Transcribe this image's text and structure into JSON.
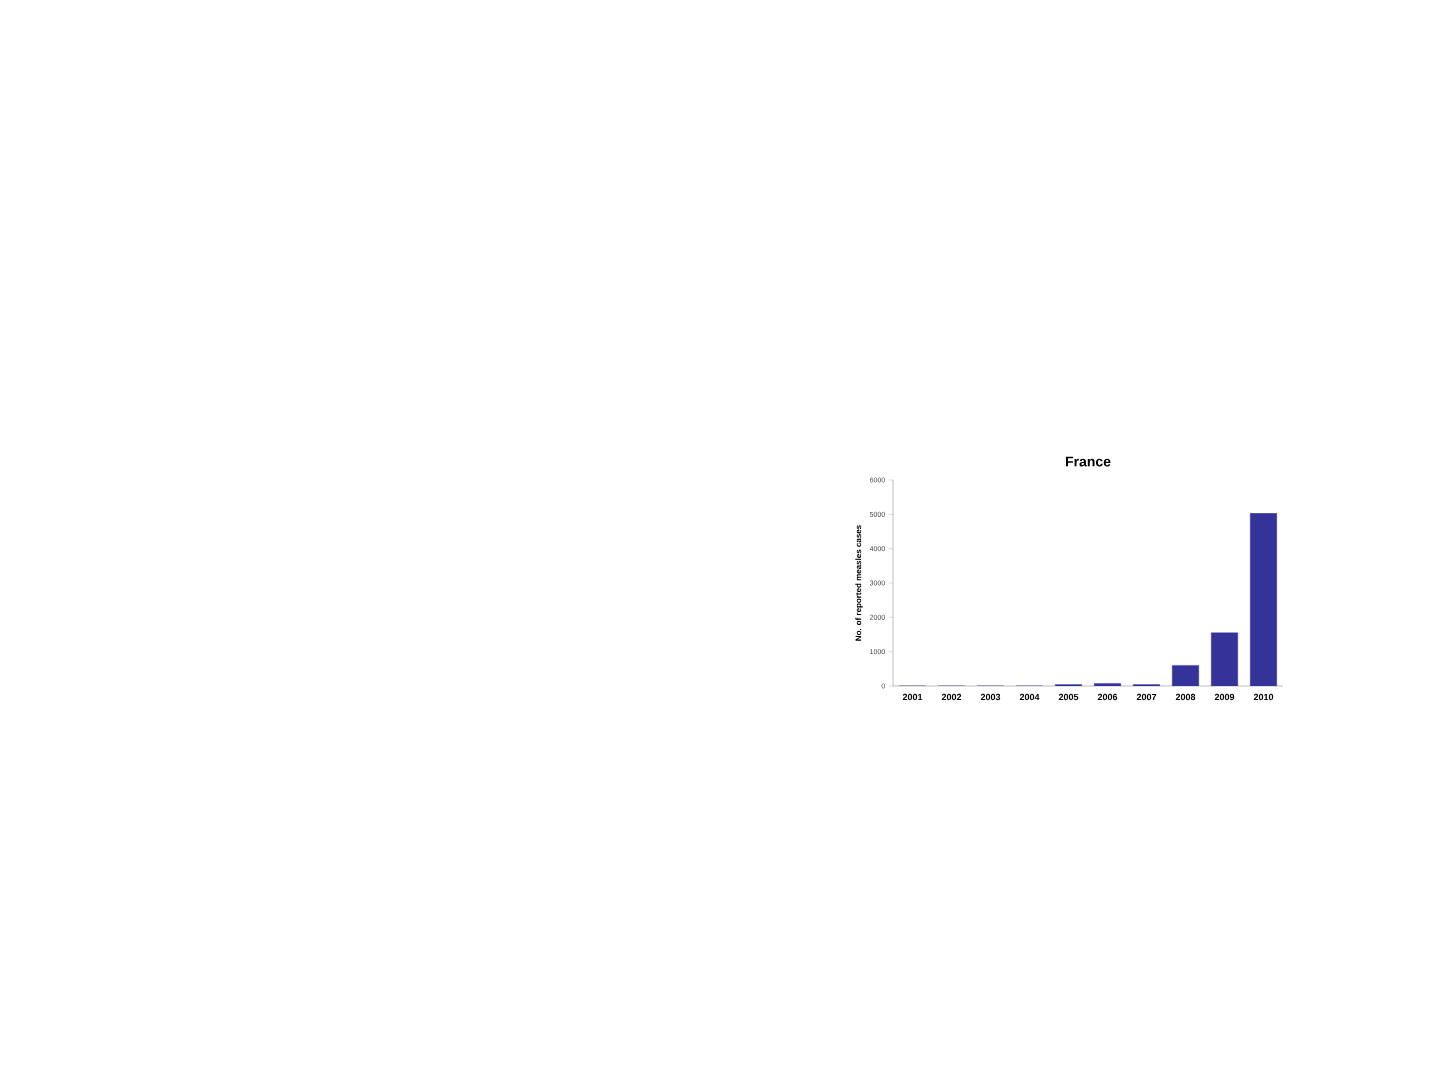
{
  "chart_data": {
    "type": "bar",
    "title": "France",
    "ylabel": "No. of reported measles cases",
    "categories": [
      "2001",
      "2002",
      "2003",
      "2004",
      "2005",
      "2006",
      "2007",
      "2008",
      "2009",
      "2010"
    ],
    "values": [
      0,
      0,
      0,
      0,
      40,
      70,
      40,
      600,
      1550,
      5030
    ],
    "color": "#333399",
    "ylim": [
      0,
      6000
    ],
    "yticks": [
      0,
      1000,
      2000,
      3000,
      4000,
      5000,
      6000
    ],
    "grid": false
  }
}
